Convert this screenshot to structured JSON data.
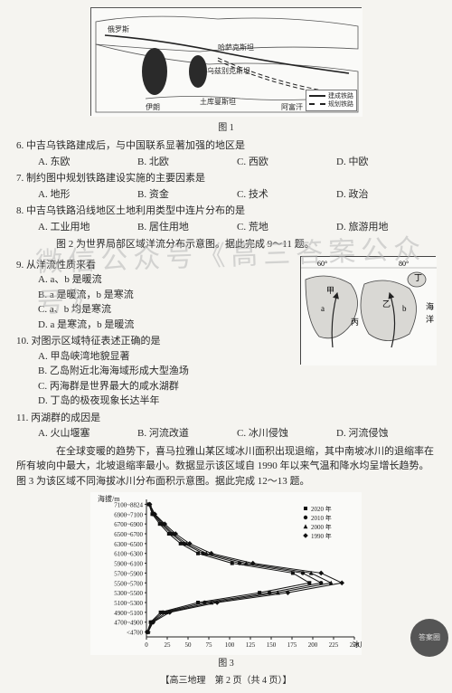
{
  "figure1": {
    "caption": "图 1",
    "labels": {
      "russia": "俄罗斯",
      "kazakh": "哈萨克斯坦",
      "uzbekistan": "乌兹别克斯坦",
      "turkmen": "土库曼斯坦",
      "iran": "伊朗",
      "afghan": "阿富汗",
      "lake1": "",
      "lake2": ""
    },
    "legend": {
      "solid": "建成铁路",
      "dash": "规划铁路"
    }
  },
  "q6": {
    "text": "6. 中吉乌铁路建成后，与中国联系显著加强的地区是",
    "a": "A. 东欧",
    "b": "B. 北欧",
    "c": "C. 西欧",
    "d": "D. 中欧"
  },
  "q7": {
    "text": "7. 制约图中规划铁路建设实施的主要因素是",
    "a": "A. 地形",
    "b": "B. 资金",
    "c": "C. 技术",
    "d": "D. 政治"
  },
  "q8": {
    "text": "8. 中吉乌铁路沿线地区土地利用类型中连片分布的是",
    "a": "A. 工业用地",
    "b": "B. 居住用地",
    "c": "C. 荒地",
    "d": "D. 旅游用地"
  },
  "stem9": "　　图 2 为世界局部区域洋流分布示意图。据此完成 9～11 题。",
  "q9": {
    "text": "9. 从洋流性质来看",
    "a": "A. a、b 是暖流",
    "b": "B. a 是暖流，b 是寒流",
    "c": "C. a、b 均是寒流",
    "d": "D. a 是寒流，b 是暖流"
  },
  "q10": {
    "text": "10. 对图示区域特征表述正确的是",
    "a": "A. 甲岛峡湾地貌显著",
    "b": "B. 乙岛附近北海海域形成大型渔场",
    "c": "C. 丙海群是世界最大的咸水湖群",
    "d": "D. 丁岛的极夜现象长达半年"
  },
  "q11": {
    "text": "11. 丙湖群的成因是",
    "a": "A. 火山堰塞",
    "b": "B. 河流改道",
    "c": "C. 冰川侵蚀",
    "d": "D. 河流侵蚀"
  },
  "stem12": "　　在全球变暖的趋势下，喜马拉雅山某区域冰川面积出现退缩，其中南坡冰川的退缩率在所有坡向中最大，北坡退缩率最小。数据显示该区域自 1990 年以来气温和降水均呈增长趋势。图 3 为该区域不同海拔冰川分布面积示意图。据此完成 12～13 题。",
  "figure2": {
    "top_ticks": {
      "t60": "60°",
      "t70": "",
      "t80": "80°"
    },
    "labs": {
      "jia": "甲",
      "yi": "乙",
      "bing": "丙",
      "ding": "丁",
      "a": "a",
      "b": "b",
      "hai": "海",
      "yang": "洋"
    }
  },
  "figure3": {
    "caption": "图 3",
    "ylabel": "海拔/m",
    "xlabel": "冰川面积/km²",
    "yticks": [
      "7100~8824",
      "6900~7100",
      "6700~6900",
      "6500~6700",
      "6300~6500",
      "6100~6300",
      "5900~6100",
      "5700~5900",
      "5500~5700",
      "5300~5500",
      "5100~5300",
      "4900~5100",
      "4700~4900",
      "<4700"
    ],
    "xticks": [
      "0",
      "25",
      "50",
      "75",
      "100",
      "125",
      "150",
      "175",
      "200",
      "225",
      "250"
    ],
    "legend": [
      "2020 年",
      "2010 年",
      "2000 年",
      "1990 年"
    ],
    "series": {
      "1990": {
        "color": "#111",
        "marker": "diamond",
        "values": [
          4,
          10,
          22,
          35,
          52,
          78,
          128,
          210,
          235,
          170,
          85,
          28,
          8,
          2
        ]
      },
      "2000": {
        "color": "#111",
        "marker": "triangle",
        "values": [
          4,
          9,
          20,
          32,
          48,
          72,
          120,
          198,
          222,
          158,
          78,
          24,
          7,
          2
        ]
      },
      "2010": {
        "color": "#111",
        "marker": "circle",
        "values": [
          3,
          8,
          18,
          30,
          45,
          68,
          112,
          188,
          210,
          148,
          70,
          20,
          6,
          1
        ]
      },
      "2020": {
        "color": "#111",
        "marker": "square",
        "values": [
          3,
          7,
          16,
          27,
          41,
          62,
          103,
          176,
          196,
          136,
          62,
          17,
          5,
          1
        ]
      }
    },
    "xlim": [
      0,
      250
    ],
    "plot": {
      "bg": "#fafaf8",
      "grid": "#cdcdc9",
      "axis": "#222",
      "fontsize": 7
    }
  },
  "footer": "【高三地理　第 2 页（共 4 页）】",
  "badge": "答案圈",
  "wm": "微信公众号《高三答案公众号》"
}
